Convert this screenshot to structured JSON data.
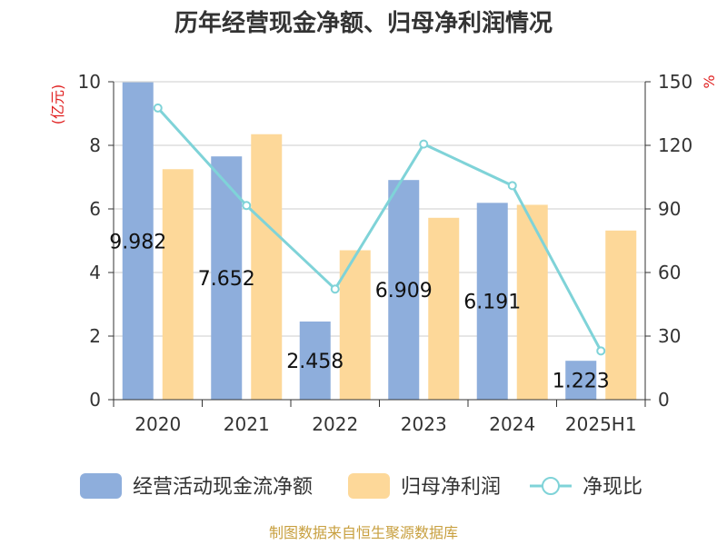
{
  "chart_data": {
    "type": "bar",
    "title": "历年经营现金净额、归母净利润情况",
    "categories": [
      "2020",
      "2021",
      "2022",
      "2023",
      "2024",
      "2025H1"
    ],
    "y_left": {
      "unit": "(亿元)",
      "ylim": [
        0,
        10
      ],
      "ticks": [
        "0",
        "2",
        "4",
        "6",
        "8",
        "10"
      ]
    },
    "y_right": {
      "unit": "%",
      "ylim": [
        0,
        150
      ],
      "ticks": [
        "0",
        "30",
        "60",
        "90",
        "120",
        "150"
      ]
    },
    "series": [
      {
        "name": "经营活动现金流净额",
        "type": "bar",
        "axis": "left",
        "color": "#8eaedc",
        "values": [
          9.982,
          7.652,
          2.458,
          6.909,
          6.191,
          1.223
        ],
        "labels": [
          "9.982",
          "7.652",
          "2.458",
          "6.909",
          "6.191",
          "1.223"
        ]
      },
      {
        "name": "归母净利润",
        "type": "bar",
        "axis": "left",
        "color": "#fdd899",
        "values": [
          7.25,
          8.35,
          4.7,
          5.72,
          6.13,
          5.32
        ]
      },
      {
        "name": "净现比",
        "type": "line",
        "axis": "right",
        "color": "#7fd3d8",
        "values": [
          137.6,
          91.6,
          52.2,
          120.6,
          101.0,
          23.0
        ]
      }
    ],
    "grid": true,
    "legend_position": "bottom"
  },
  "source": "制图数据来自恒生聚源数据库"
}
